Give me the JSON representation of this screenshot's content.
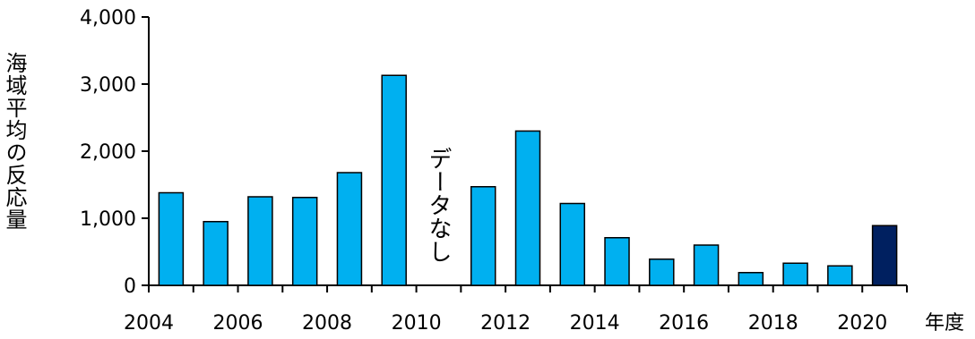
{
  "chart_data": {
    "type": "bar",
    "ylabel": "海域平均の反応量",
    "xunit": "年度",
    "ylim": [
      0,
      4000
    ],
    "yticks": [
      "0",
      "1,000",
      "2,000",
      "3,000",
      "4,000"
    ],
    "xticks": [
      "2004",
      "2006",
      "2008",
      "2010",
      "2012",
      "2014",
      "2016",
      "2018",
      "2020"
    ],
    "categories": [
      "2004",
      "2005",
      "2006",
      "2007",
      "2008",
      "2009",
      "2010",
      "2011",
      "2012",
      "2013",
      "2014",
      "2015",
      "2016",
      "2017",
      "2018",
      "2019",
      "2020"
    ],
    "values": [
      1380,
      950,
      1320,
      1310,
      1680,
      3130,
      null,
      1470,
      2300,
      1220,
      710,
      390,
      600,
      190,
      330,
      290,
      890
    ],
    "no_data_note": "データなし",
    "colors": {
      "default": "#00b0f0",
      "highlight": "#002060"
    },
    "highlight_category": "2020"
  }
}
